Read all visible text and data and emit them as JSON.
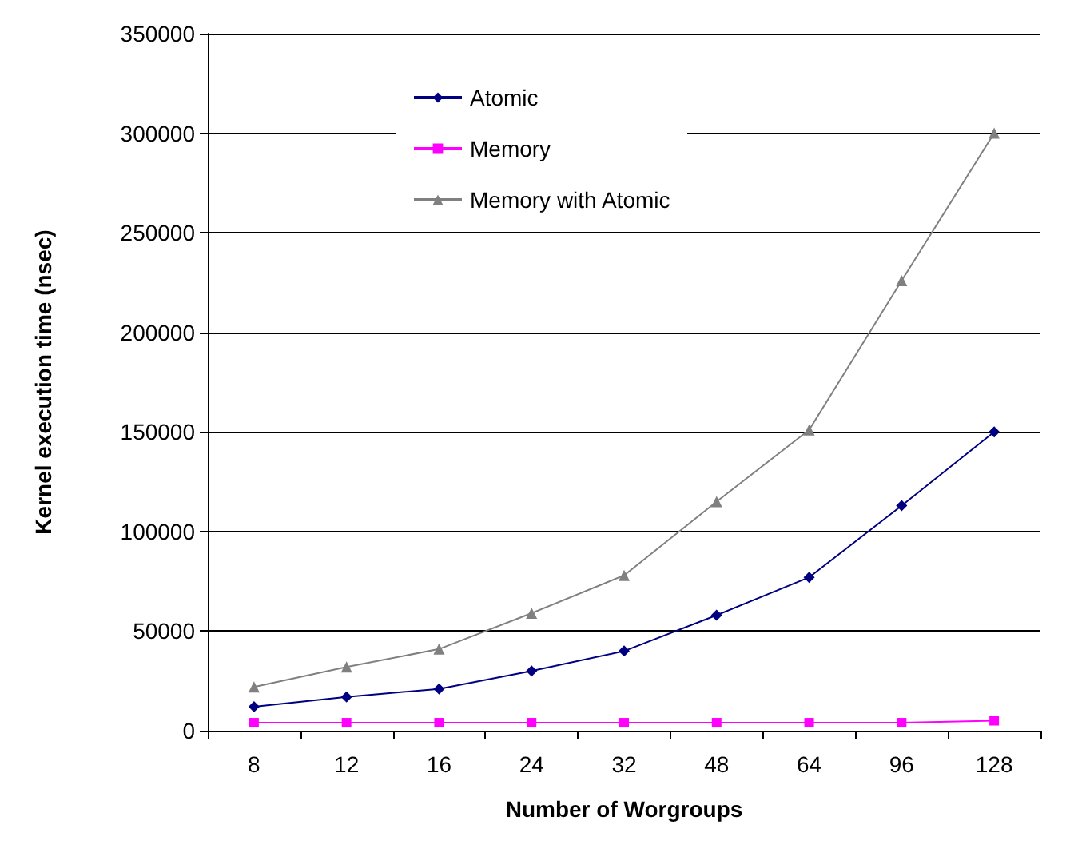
{
  "chart_data": {
    "type": "line",
    "xlabel": "Number of Worgroups",
    "ylabel": "Kernel execution time (nsec)",
    "categories": [
      "8",
      "12",
      "16",
      "24",
      "32",
      "48",
      "64",
      "96",
      "128"
    ],
    "series": [
      {
        "name": "Atomic",
        "color": "#000080",
        "marker": "diamond",
        "values": [
          12000,
          17000,
          21000,
          30000,
          40000,
          58000,
          77000,
          113000,
          150000
        ]
      },
      {
        "name": "Memory",
        "color": "#ff00ff",
        "marker": "square",
        "values": [
          4000,
          4000,
          4000,
          4000,
          4000,
          4000,
          4000,
          4000,
          5000
        ]
      },
      {
        "name": "Memory with Atomic",
        "color": "#808080",
        "marker": "triangle",
        "values": [
          22000,
          32000,
          41000,
          59000,
          78000,
          115000,
          151000,
          226000,
          300000
        ]
      }
    ],
    "ylim": [
      0,
      350000
    ],
    "yticks": [
      0,
      50000,
      100000,
      150000,
      200000,
      250000,
      300000,
      350000
    ],
    "grid": "y",
    "legend": "top left"
  }
}
